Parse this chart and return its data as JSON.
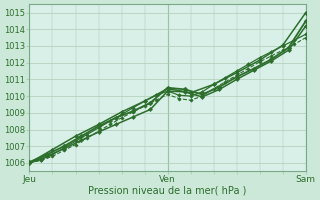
{
  "title": "",
  "xlabel": "Pression niveau de la mer( hPa )",
  "bg_color": "#cce8d8",
  "plot_bg_color": "#d8f0e8",
  "grid_color": "#b0ccb8",
  "line_color": "#2d6e2d",
  "xlim": [
    0,
    48
  ],
  "ylim": [
    1005.5,
    1015.5
  ],
  "yticks": [
    1006,
    1007,
    1008,
    1009,
    1010,
    1011,
    1012,
    1013,
    1014,
    1015
  ],
  "xtick_labels": [
    "Jeu",
    "Ven",
    "Sam"
  ],
  "xtick_positions": [
    0,
    24,
    48
  ],
  "series": [
    {
      "x": [
        0,
        2,
        4,
        6,
        8,
        10,
        12,
        14,
        16,
        18,
        20,
        22,
        24,
        26,
        28,
        30,
        32,
        34,
        36,
        38,
        40,
        42,
        44,
        46,
        48
      ],
      "y": [
        1006.0,
        1006.2,
        1006.5,
        1006.9,
        1007.3,
        1007.7,
        1008.1,
        1008.5,
        1008.9,
        1009.3,
        1009.7,
        1010.05,
        1010.3,
        1010.05,
        1010.0,
        1010.25,
        1010.7,
        1011.1,
        1011.5,
        1011.9,
        1012.3,
        1012.65,
        1013.0,
        1013.35,
        1013.7
      ],
      "marker": "D",
      "ms": 2.0,
      "lw": 0.9,
      "style": "-"
    },
    {
      "x": [
        0,
        2,
        4,
        6,
        8,
        10,
        12,
        14,
        16,
        18,
        20,
        22,
        24,
        26,
        28,
        30,
        32,
        34,
        36,
        38,
        40,
        42,
        44,
        46,
        48
      ],
      "y": [
        1006.0,
        1006.15,
        1006.4,
        1006.75,
        1007.1,
        1007.5,
        1007.9,
        1008.3,
        1008.7,
        1009.05,
        1009.4,
        1009.75,
        1010.1,
        1009.85,
        1009.75,
        1010.0,
        1010.45,
        1010.85,
        1011.25,
        1011.65,
        1012.05,
        1012.4,
        1012.75,
        1013.1,
        1013.5
      ],
      "marker": "D",
      "ms": 1.8,
      "lw": 0.8,
      "style": "--"
    },
    {
      "x": [
        0,
        3,
        6,
        9,
        12,
        15,
        18,
        21,
        24,
        27,
        30,
        33,
        36,
        39,
        42,
        45,
        48
      ],
      "y": [
        1006.05,
        1006.5,
        1007.0,
        1007.6,
        1008.2,
        1008.7,
        1009.1,
        1009.6,
        1010.5,
        1010.4,
        1010.1,
        1010.55,
        1011.15,
        1011.65,
        1012.2,
        1012.9,
        1014.5
      ],
      "marker": "D",
      "ms": 2.5,
      "lw": 1.3,
      "style": "-"
    },
    {
      "x": [
        0,
        3,
        6,
        9,
        12,
        15,
        18,
        21,
        24,
        27,
        30,
        33,
        36,
        39,
        42,
        45,
        48
      ],
      "y": [
        1006.0,
        1006.4,
        1006.85,
        1007.35,
        1007.85,
        1008.3,
        1008.75,
        1009.2,
        1010.3,
        1010.25,
        1009.95,
        1010.4,
        1011.0,
        1011.55,
        1012.1,
        1012.75,
        1014.2
      ],
      "marker": "D",
      "ms": 2.2,
      "lw": 1.1,
      "style": "-"
    },
    {
      "x": [
        0,
        4,
        8,
        12,
        16,
        20,
        24,
        28,
        32,
        36,
        40,
        44,
        48
      ],
      "y": [
        1006.0,
        1006.8,
        1007.6,
        1008.3,
        1009.05,
        1009.7,
        1010.45,
        1010.2,
        1010.7,
        1011.4,
        1012.15,
        1013.05,
        1015.0
      ],
      "marker": "D",
      "ms": 2.2,
      "lw": 1.1,
      "style": "-"
    }
  ]
}
